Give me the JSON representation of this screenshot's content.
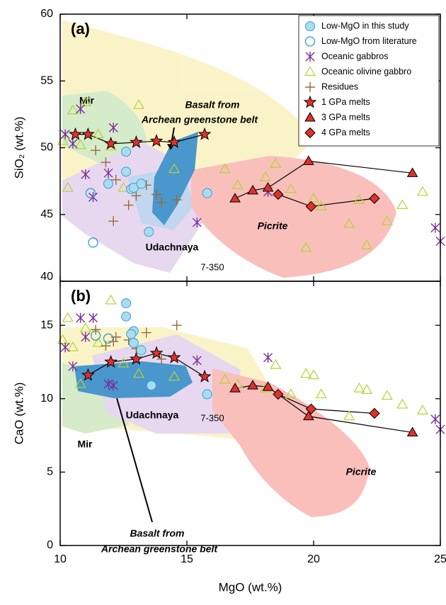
{
  "chart_data": [
    {
      "type": "scatter",
      "panel_label": "(a)",
      "ylabel": "SiO₂ (wt.%)",
      "xlim": [
        10,
        25
      ],
      "xticks": [
        10,
        15,
        20,
        25
      ],
      "ylim": [
        40,
        60
      ],
      "yticks": [
        40,
        45,
        50,
        55,
        60
      ],
      "legend": "upper right",
      "annotations": [
        {
          "text": "Mir"
        },
        {
          "text": "Basalt from"
        },
        {
          "text": "Archean greenstone belt"
        },
        {
          "text": "Udachnaya"
        },
        {
          "text": "Picrite"
        },
        {
          "text": "7-350"
        }
      ],
      "series": [
        {
          "name": "Low-MgO in this study",
          "marker": "circle",
          "color": "#aadcf0",
          "edge": "#3a9fd0",
          "x": [
            12.6,
            12.6,
            11.9,
            12.8,
            12.9,
            13.2,
            13.5,
            15.8
          ],
          "values": [
            49.7,
            48.2,
            47.3,
            46.9,
            47.0,
            47.3,
            43.7,
            46.6
          ]
        },
        {
          "name": "Low-MgO from literature",
          "marker": "open-circle",
          "color": "#2aa0c8",
          "x": [
            11.2,
            11.3
          ],
          "values": [
            46.6,
            42.9
          ]
        },
        {
          "name": "Oceanic gabbros",
          "marker": "asterisk",
          "color": "#7b2d9b",
          "x": [
            10.2,
            10.5,
            10.8,
            11.0,
            11.3,
            11.9,
            12.1,
            15.4,
            18.2,
            24.8,
            25.0
          ],
          "values": [
            51.0,
            50.3,
            52.9,
            48.0,
            46.3,
            48.1,
            51.5,
            44.4,
            46.7,
            44.0,
            43.0
          ]
        },
        {
          "name": "Oceanic olivine gabbro",
          "marker": "triangle",
          "color": "#b5d334",
          "x": [
            10.1,
            10.3,
            10.5,
            10.8,
            11.0,
            11.5,
            12.0,
            12.5,
            13.1,
            14.5,
            16.5,
            17.0,
            18.1,
            18.5,
            19.1,
            19.7,
            20.0,
            20.3,
            21.4,
            21.8,
            22.9,
            23.5,
            22.1,
            24.3
          ],
          "values": [
            50.5,
            47.0,
            52.8,
            50.2,
            53.4,
            51.0,
            50.1,
            47.0,
            53.2,
            48.4,
            48.4,
            47.2,
            47.8,
            48.8,
            46.9,
            42.5,
            46.2,
            45.6,
            44.3,
            46.1,
            44.5,
            45.7,
            42.7,
            46.7
          ]
        },
        {
          "name": "Residues",
          "marker": "plus",
          "color": "#9a6a36",
          "x": [
            11.4,
            11.8,
            12.2,
            12.7,
            13.0,
            13.4,
            13.8,
            14.0,
            14.6,
            12.1
          ],
          "values": [
            49.8,
            48.9,
            47.6,
            45.7,
            46.4,
            47.2,
            46.5,
            45.9,
            46.1,
            44.5
          ]
        },
        {
          "name": "1 GPa melts",
          "marker": "star",
          "color": "#e0312b",
          "line": true,
          "x": [
            10.6,
            11.1,
            12.0,
            13.0,
            13.8,
            14.5,
            15.7
          ],
          "values": [
            51.0,
            51.0,
            50.3,
            50.4,
            50.5,
            50.4,
            51.0
          ]
        },
        {
          "name": "3 GPa melts",
          "marker": "filled-triangle",
          "color": "#e0312b",
          "line": true,
          "x": [
            16.9,
            17.6,
            18.2,
            19.8,
            23.9
          ],
          "values": [
            46.2,
            46.8,
            47.0,
            49.0,
            48.1
          ]
        },
        {
          "name": "4 GPa melts",
          "marker": "diamond",
          "color": "#e0312b",
          "line": true,
          "x": [
            18.6,
            19.9,
            22.4
          ],
          "values": [
            46.5,
            45.6,
            46.2
          ]
        }
      ]
    },
    {
      "type": "scatter",
      "panel_label": "(b)",
      "ylabel": "CaO (wt.%)",
      "xlabel": "MgO (wt.%)",
      "xlim": [
        10,
        25
      ],
      "xticks": [
        10,
        15,
        20,
        25
      ],
      "ylim": [
        0,
        18
      ],
      "yticks": [
        0,
        5,
        10,
        15
      ],
      "annotations": [
        {
          "text": "Mir"
        },
        {
          "text": "Udachnaya"
        },
        {
          "text": "Basalt from"
        },
        {
          "text": "Archean greenstone belt"
        },
        {
          "text": "Picrite"
        },
        {
          "text": "7-350"
        }
      ],
      "series": [
        {
          "marker": "circle",
          "color": "#aadcf0",
          "edge": "#3a9fd0",
          "x": [
            12.6,
            12.6,
            12.9,
            12.8,
            12.9,
            13.2,
            13.6,
            15.8
          ],
          "values": [
            16.5,
            15.6,
            14.6,
            14.4,
            13.8,
            13.3,
            10.9,
            10.3
          ]
        },
        {
          "marker": "open-circle",
          "color": "#2aa0c8",
          "x": [
            11.4,
            11.9
          ],
          "values": [
            14.3,
            14.1
          ]
        },
        {
          "marker": "asterisk",
          "color": "#7b2d9b",
          "x": [
            10.2,
            10.5,
            10.8,
            11.0,
            11.3,
            11.9,
            12.1,
            15.4,
            18.2,
            24.8,
            25.0
          ],
          "values": [
            13.5,
            12.2,
            15.5,
            14.2,
            15.5,
            11.0,
            10.9,
            12.6,
            12.8,
            8.6,
            7.9
          ]
        },
        {
          "marker": "triangle",
          "color": "#b5d334",
          "x": [
            10.1,
            10.3,
            10.5,
            10.8,
            11.0,
            11.5,
            12.0,
            12.5,
            13.1,
            14.5,
            16.5,
            17.0,
            18.1,
            18.5,
            19.1,
            19.7,
            20.0,
            20.3,
            21.4,
            21.8,
            22.9,
            23.5,
            22.1,
            24.3
          ],
          "values": [
            14.0,
            15.5,
            13.5,
            11.0,
            14.8,
            13.8,
            16.7,
            12.4,
            11.7,
            11.5,
            11.3,
            11.0,
            10.7,
            12.3,
            10.3,
            11.7,
            11.6,
            10.3,
            8.8,
            10.7,
            10.2,
            9.6,
            10.6,
            9.2
          ]
        },
        {
          "marker": "plus",
          "color": "#9a6a36",
          "x": [
            11.4,
            11.8,
            12.2,
            12.7,
            13.0,
            13.4,
            13.8,
            14.0,
            14.6,
            12.1
          ],
          "values": [
            14.7,
            13.6,
            14.2,
            14.0,
            13.4,
            14.5,
            13.2,
            12.7,
            15.0,
            13.9
          ]
        },
        {
          "marker": "star",
          "color": "#e0312b",
          "line": true,
          "x": [
            11.1,
            12.0,
            13.0,
            13.8,
            14.5,
            15.7
          ],
          "values": [
            11.6,
            12.5,
            12.7,
            13.1,
            12.8,
            11.5
          ]
        },
        {
          "marker": "filled-triangle",
          "color": "#e0312b",
          "line": true,
          "x": [
            16.9,
            17.6,
            18.2,
            19.8,
            23.9
          ],
          "values": [
            10.7,
            10.9,
            10.8,
            8.8,
            7.7
          ]
        },
        {
          "marker": "diamond",
          "color": "#e0312b",
          "line": true,
          "x": [
            18.6,
            19.9,
            22.4
          ],
          "values": [
            10.3,
            9.3,
            9.0
          ]
        }
      ]
    }
  ]
}
